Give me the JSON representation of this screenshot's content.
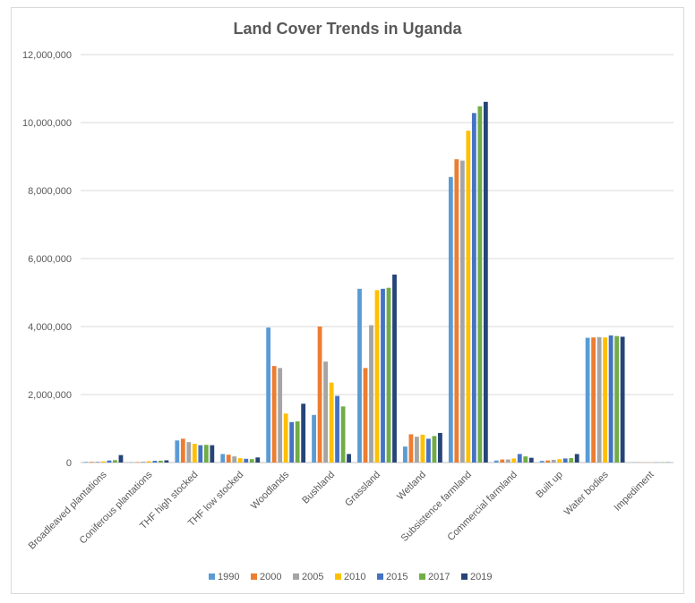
{
  "chart_data": {
    "type": "bar",
    "title": "Land Cover Trends in Uganda",
    "xlabel": "",
    "ylabel": "",
    "ylim": [
      0,
      12000000
    ],
    "yticks": [
      "0",
      "2,000,000",
      "4,000,000",
      "6,000,000",
      "8,000,000",
      "10,000,000",
      "12,000,000"
    ],
    "ytick_values": [
      0,
      2000000,
      4000000,
      6000000,
      8000000,
      10000000,
      12000000
    ],
    "grid": true,
    "legend_position": "bottom",
    "categories": [
      "Broadleaved plantations",
      "Coniferous plantations",
      "THF high stocked",
      "THF low stocked",
      "Woodlands",
      "Bushland",
      "Grassland",
      "Wetland",
      "Subsistence farmland",
      "Commercial farmland",
      "Built up",
      "Water bodies",
      "Impediment"
    ],
    "series": [
      {
        "name": "1990",
        "color": "#5b9bd5",
        "values": [
          18000,
          10000,
          650000,
          250000,
          3970000,
          1400000,
          5110000,
          470000,
          8400000,
          60000,
          50000,
          3670000,
          5000
        ]
      },
      {
        "name": "2000",
        "color": "#ed7d31",
        "values": [
          20000,
          15000,
          700000,
          230000,
          2840000,
          4000000,
          2780000,
          830000,
          8920000,
          90000,
          60000,
          3680000,
          5000
        ]
      },
      {
        "name": "2005",
        "color": "#a5a5a5",
        "values": [
          25000,
          25000,
          600000,
          180000,
          2780000,
          2970000,
          4040000,
          760000,
          8880000,
          90000,
          80000,
          3690000,
          5000
        ]
      },
      {
        "name": "2010",
        "color": "#ffc000",
        "values": [
          35000,
          40000,
          550000,
          130000,
          1440000,
          2350000,
          5070000,
          820000,
          9760000,
          120000,
          100000,
          3680000,
          5000
        ]
      },
      {
        "name": "2015",
        "color": "#4472c4",
        "values": [
          60000,
          50000,
          510000,
          110000,
          1190000,
          1960000,
          5110000,
          700000,
          10280000,
          250000,
          120000,
          3740000,
          5000
        ]
      },
      {
        "name": "2017",
        "color": "#70ad47",
        "values": [
          70000,
          55000,
          520000,
          100000,
          1210000,
          1650000,
          5140000,
          780000,
          10480000,
          180000,
          130000,
          3720000,
          5000
        ]
      },
      {
        "name": "2019",
        "color": "#264478",
        "values": [
          220000,
          65000,
          510000,
          150000,
          1730000,
          250000,
          5530000,
          870000,
          10610000,
          140000,
          250000,
          3700000,
          5000
        ]
      }
    ]
  }
}
